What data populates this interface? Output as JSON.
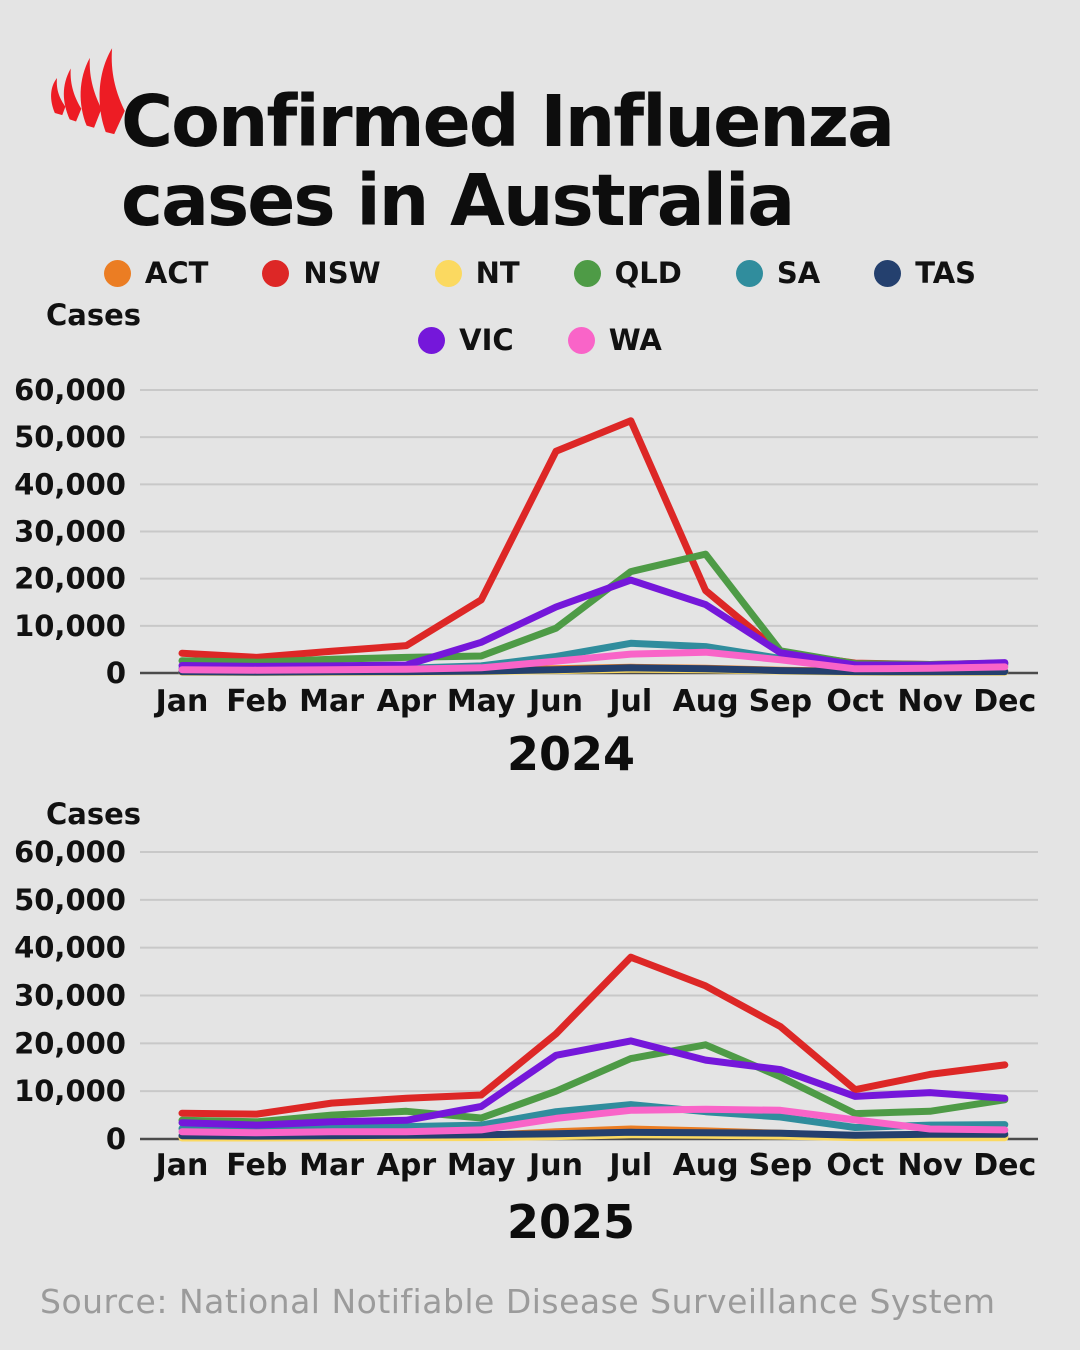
{
  "header": {
    "title_line1": "Confirmed Influenza",
    "title_line2": "cases in Australia",
    "logo_color": "#ed1c24"
  },
  "colors": {
    "ACT": "#eb7d23",
    "NSW": "#dd2726",
    "NT": "#fbd960",
    "QLD": "#4e9b46",
    "SA": "#308d9d",
    "TAS": "#24406e",
    "VIC": "#7517da",
    "WA": "#f964c8"
  },
  "legend": {
    "rows": [
      [
        "ACT",
        "NSW",
        "NT",
        "QLD",
        "SA",
        "TAS"
      ],
      [
        "VIC",
        "WA"
      ]
    ]
  },
  "chart_data": [
    {
      "type": "line",
      "title": "2024",
      "ylabel": "Cases",
      "x": [
        "Jan",
        "Feb",
        "Mar",
        "Apr",
        "May",
        "Jun",
        "Jul",
        "Aug",
        "Sep",
        "Oct",
        "Nov",
        "Dec"
      ],
      "ylim": [
        0,
        60000
      ],
      "yticks": [
        60000,
        50000,
        40000,
        30000,
        20000,
        10000,
        0
      ],
      "ytick_labels": [
        "60,000",
        "50,000",
        "40,000",
        "30,000",
        "20,000",
        "10,000",
        "0"
      ],
      "grid": true,
      "series": [
        {
          "name": "ACT",
          "color": "#eb7d23",
          "values": [
            400,
            350,
            400,
            500,
            700,
            900,
            1200,
            1000,
            600,
            350,
            300,
            350
          ]
        },
        {
          "name": "NSW",
          "color": "#dd2726",
          "values": [
            4200,
            3300,
            4600,
            5800,
            15500,
            47000,
            53500,
            17500,
            4300,
            2100,
            1800,
            2100
          ]
        },
        {
          "name": "NT",
          "color": "#fbd960",
          "values": [
            150,
            120,
            150,
            200,
            300,
            500,
            800,
            700,
            400,
            200,
            150,
            150
          ]
        },
        {
          "name": "QLD",
          "color": "#4e9b46",
          "values": [
            2600,
            2300,
            2900,
            3300,
            3600,
            9500,
            21500,
            25200,
            4700,
            2000,
            1800,
            2100
          ]
        },
        {
          "name": "SA",
          "color": "#308d9d",
          "values": [
            900,
            800,
            900,
            1000,
            1500,
            3500,
            6300,
            5600,
            3100,
            1300,
            1500,
            1800
          ]
        },
        {
          "name": "TAS",
          "color": "#24406e",
          "values": [
            250,
            200,
            250,
            300,
            400,
            700,
            1100,
            900,
            500,
            300,
            250,
            300
          ]
        },
        {
          "name": "VIC",
          "color": "#7517da",
          "values": [
            1600,
            1400,
            1500,
            1700,
            6500,
            14000,
            19700,
            14500,
            4300,
            1700,
            1700,
            2200
          ]
        },
        {
          "name": "WA",
          "color": "#f964c8",
          "values": [
            700,
            600,
            700,
            800,
            1100,
            2500,
            4000,
            4400,
            2800,
            900,
            1000,
            1300
          ]
        }
      ]
    },
    {
      "type": "line",
      "title": "2025",
      "ylabel": "Cases",
      "x": [
        "Jan",
        "Feb",
        "Mar",
        "Apr",
        "May",
        "Jun",
        "Jul",
        "Aug",
        "Sep",
        "Oct",
        "Nov",
        "Dec"
      ],
      "ylim": [
        0,
        60000
      ],
      "yticks": [
        60000,
        50000,
        40000,
        30000,
        20000,
        10000,
        0
      ],
      "ytick_labels": [
        "60,000",
        "50,000",
        "40,000",
        "30,000",
        "20,000",
        "10,000",
        "0"
      ],
      "grid": true,
      "series": [
        {
          "name": "ACT",
          "color": "#eb7d23",
          "values": [
            500,
            450,
            550,
            600,
            700,
            1500,
            2100,
            1700,
            1200,
            600,
            500,
            500
          ]
        },
        {
          "name": "NSW",
          "color": "#dd2726",
          "values": [
            5400,
            5200,
            7500,
            8500,
            9200,
            22000,
            38000,
            32000,
            23500,
            10300,
            13500,
            15500
          ]
        },
        {
          "name": "NT",
          "color": "#fbd960",
          "values": [
            200,
            200,
            250,
            300,
            300,
            500,
            900,
            800,
            600,
            300,
            250,
            250
          ]
        },
        {
          "name": "QLD",
          "color": "#4e9b46",
          "values": [
            3900,
            3600,
            5000,
            5800,
            4400,
            10000,
            16800,
            19700,
            13000,
            5300,
            5800,
            8200
          ]
        },
        {
          "name": "SA",
          "color": "#308d9d",
          "values": [
            2200,
            1900,
            2200,
            2600,
            2900,
            5700,
            7200,
            5700,
            4600,
            2400,
            2900,
            3000
          ]
        },
        {
          "name": "TAS",
          "color": "#24406e",
          "values": [
            700,
            600,
            700,
            800,
            900,
            1100,
            1400,
            1300,
            1200,
            800,
            1000,
            1000
          ]
        },
        {
          "name": "VIC",
          "color": "#7517da",
          "values": [
            3400,
            2900,
            3600,
            3900,
            6800,
            17500,
            20500,
            16500,
            14500,
            8900,
            9700,
            8500
          ]
        },
        {
          "name": "WA",
          "color": "#f964c8",
          "values": [
            1500,
            1300,
            1500,
            1500,
            1900,
            4300,
            6000,
            6200,
            6000,
            4000,
            2100,
            1900
          ]
        }
      ]
    }
  ],
  "footer": {
    "source": "Source: National Notifiable Disease Surveillance System"
  }
}
